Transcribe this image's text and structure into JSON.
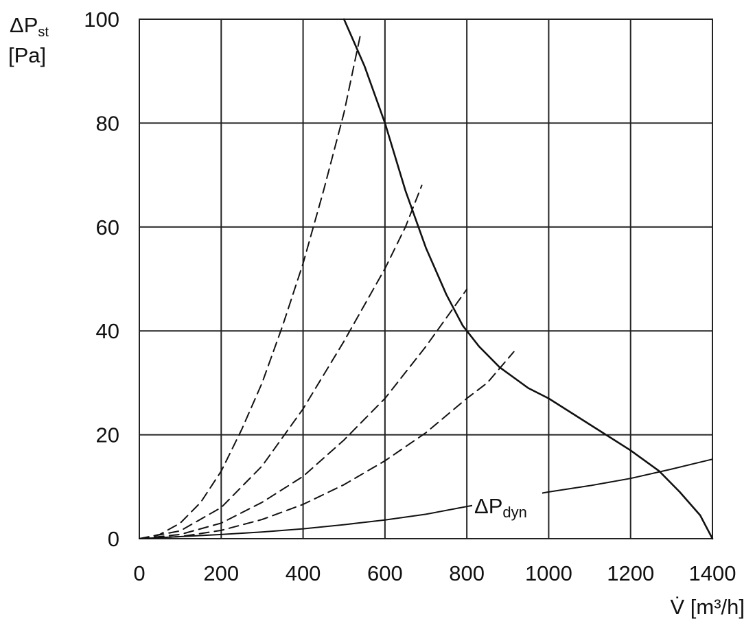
{
  "chart_data": {
    "type": "line",
    "xlabel": "V̇ [m³/h]",
    "ylabel_main": "ΔP",
    "ylabel_sub": "st",
    "ylabel_unit": "[Pa]",
    "xlim": [
      0,
      1400
    ],
    "ylim": [
      0,
      100
    ],
    "x_ticks": [
      "0",
      "200",
      "400",
      "600",
      "800",
      "1000",
      "1200",
      "1400"
    ],
    "y_ticks": [
      "0",
      "20",
      "40",
      "60",
      "80",
      "100"
    ],
    "grid": true,
    "series": [
      {
        "name": "",
        "style": "solid",
        "points": [
          [
            500,
            100
          ],
          [
            550,
            91
          ],
          [
            600,
            80
          ],
          [
            650,
            67
          ],
          [
            700,
            56
          ],
          [
            750,
            47
          ],
          [
            790,
            41
          ],
          [
            830,
            37
          ],
          [
            880,
            33
          ],
          [
            950,
            29
          ],
          [
            1000,
            27
          ],
          [
            1100,
            22
          ],
          [
            1200,
            17
          ],
          [
            1270,
            13
          ],
          [
            1320,
            9
          ],
          [
            1370,
            4.5
          ],
          [
            1400,
            0
          ]
        ]
      },
      {
        "name": "",
        "annotation_main": "ΔP",
        "annotation_sub": "dyn",
        "style": "solid",
        "points": [
          [
            0,
            0
          ],
          [
            100,
            0.4
          ],
          [
            200,
            0.8
          ],
          [
            300,
            1.3
          ],
          [
            400,
            1.9
          ],
          [
            500,
            2.7
          ],
          [
            600,
            3.6
          ],
          [
            700,
            4.7
          ],
          [
            800,
            6.2
          ],
          [
            900,
            7.6
          ],
          [
            1000,
            9
          ],
          [
            1100,
            10.2
          ],
          [
            1200,
            11.6
          ],
          [
            1300,
            13.4
          ],
          [
            1400,
            15.3
          ]
        ]
      },
      {
        "name": "",
        "style": "dashed",
        "points": [
          [
            0,
            0
          ],
          [
            50,
            0.8
          ],
          [
            100,
            3
          ],
          [
            150,
            7
          ],
          [
            200,
            13
          ],
          [
            250,
            21
          ],
          [
            300,
            30
          ],
          [
            350,
            41
          ],
          [
            400,
            53
          ],
          [
            450,
            67
          ],
          [
            500,
            82
          ],
          [
            540,
            97
          ]
        ]
      },
      {
        "name": "",
        "style": "dashed",
        "points": [
          [
            0,
            0
          ],
          [
            100,
            1.5
          ],
          [
            200,
            6
          ],
          [
            300,
            14
          ],
          [
            400,
            25
          ],
          [
            500,
            38
          ],
          [
            600,
            52
          ],
          [
            650,
            60
          ],
          [
            690,
            68
          ]
        ]
      },
      {
        "name": "",
        "style": "dashed",
        "points": [
          [
            0,
            0
          ],
          [
            100,
            0.8
          ],
          [
            200,
            3
          ],
          [
            300,
            7
          ],
          [
            400,
            12
          ],
          [
            500,
            19
          ],
          [
            600,
            27
          ],
          [
            700,
            37
          ],
          [
            800,
            48
          ]
        ]
      },
      {
        "name": "",
        "style": "dashed",
        "points": [
          [
            0,
            0
          ],
          [
            100,
            0.4
          ],
          [
            200,
            1.6
          ],
          [
            300,
            3.7
          ],
          [
            400,
            6.6
          ],
          [
            500,
            10.4
          ],
          [
            600,
            15
          ],
          [
            700,
            20.4
          ],
          [
            800,
            27
          ],
          [
            850,
            30
          ],
          [
            915,
            36
          ]
        ]
      }
    ]
  }
}
